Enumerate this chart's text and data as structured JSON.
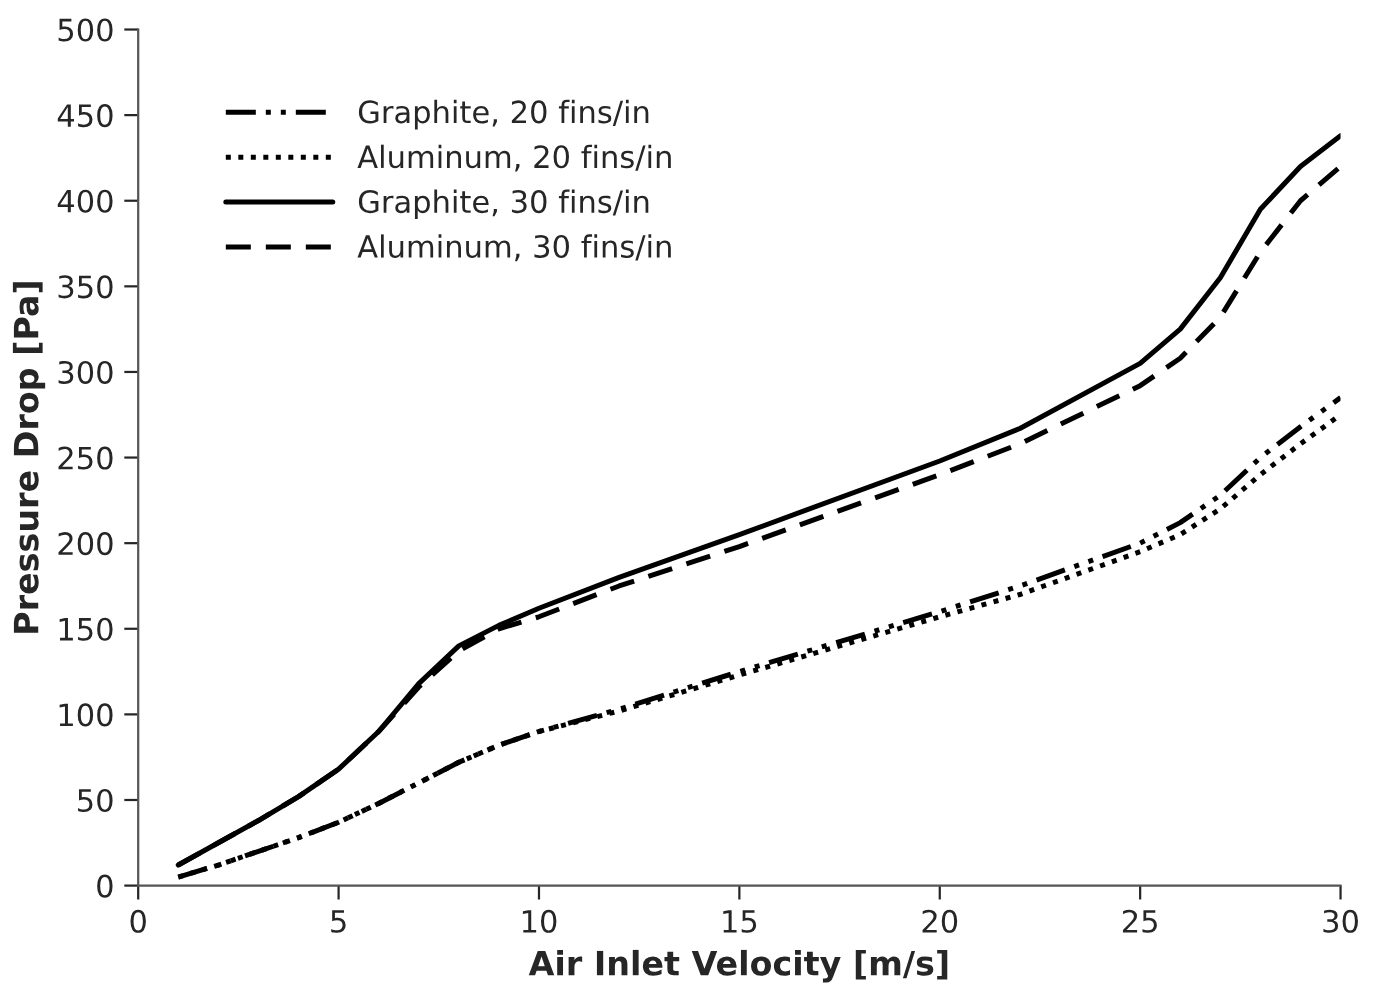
{
  "chart_data": {
    "type": "line",
    "xlabel": "Air Inlet Velocity [m/s]",
    "ylabel": "Pressure Drop [Pa]",
    "xlim": [
      0,
      30
    ],
    "ylim": [
      0,
      500
    ],
    "xticks": [
      0,
      5,
      10,
      15,
      20,
      25,
      30
    ],
    "yticks": [
      0,
      50,
      100,
      150,
      200,
      250,
      300,
      350,
      400,
      450,
      500
    ],
    "grid": false,
    "legend": "top left",
    "marker": "none",
    "x": [
      1,
      2,
      3,
      4,
      5,
      6,
      7,
      8,
      9,
      10,
      12,
      15,
      20,
      22,
      25,
      26,
      27,
      28,
      29,
      30
    ],
    "series": [
      {
        "name": "Graphite, 20 fins/in",
        "color": "#000000",
        "line_style": "dashdot",
        "values": [
          5,
          12,
          20,
          28,
          37,
          48,
          60,
          72,
          82,
          90,
          103,
          125,
          160,
          175,
          200,
          212,
          228,
          250,
          268,
          285
        ]
      },
      {
        "name": "Aluminum, 20 fins/in",
        "color": "#000000",
        "line_style": "dotted",
        "values": [
          5,
          12,
          20,
          28,
          37,
          48,
          60,
          72,
          82,
          90,
          102,
          123,
          157,
          170,
          195,
          205,
          220,
          240,
          258,
          275
        ]
      },
      {
        "name": "Graphite, 30 fins/in",
        "color": "#000000",
        "line_style": "solid",
        "values": [
          12,
          25,
          38,
          52,
          68,
          90,
          118,
          140,
          152,
          162,
          180,
          205,
          248,
          267,
          305,
          325,
          355,
          395,
          420,
          438
        ]
      },
      {
        "name": "Aluminum, 30 fins/in",
        "color": "#000000",
        "line_style": "dashed",
        "values": [
          12,
          25,
          38,
          52,
          68,
          90,
          116,
          137,
          150,
          157,
          175,
          198,
          240,
          258,
          292,
          308,
          332,
          370,
          400,
          420
        ]
      }
    ]
  }
}
